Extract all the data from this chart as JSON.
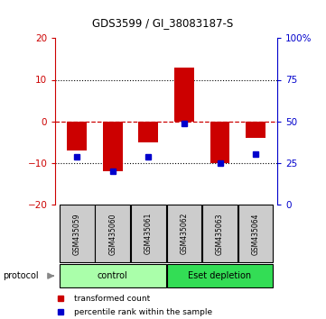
{
  "title": "GDS3599 / GI_38083187-S",
  "categories": [
    "GSM435059",
    "GSM435060",
    "GSM435061",
    "GSM435062",
    "GSM435063",
    "GSM435064"
  ],
  "red_values": [
    -7.0,
    -12.0,
    -5.0,
    13.0,
    -10.0,
    -4.0
  ],
  "blue_values": [
    -8.5,
    -12.0,
    -8.5,
    -0.5,
    -10.0,
    -8.0
  ],
  "ylim_left": [
    -20,
    20
  ],
  "ylim_right": [
    0,
    100
  ],
  "yticks_left": [
    -20,
    -10,
    0,
    10,
    20
  ],
  "yticks_right": [
    0,
    25,
    50,
    75,
    100
  ],
  "ytick_labels_right": [
    "0",
    "25",
    "50",
    "75",
    "100%"
  ],
  "groups": [
    {
      "label": "control",
      "start": 0,
      "end": 2,
      "color": "#aaffaa"
    },
    {
      "label": "Eset depletion",
      "start": 3,
      "end": 5,
      "color": "#33dd55"
    }
  ],
  "protocol_label": "protocol",
  "legend_red_label": "transformed count",
  "legend_blue_label": "percentile rank within the sample",
  "red_color": "#cc0000",
  "blue_color": "#0000cc",
  "bar_width": 0.55,
  "background_color": "#ffffff",
  "sample_box_color": "#cccccc",
  "dotted_line_color": "#000000",
  "zero_line_color": "#cc0000"
}
